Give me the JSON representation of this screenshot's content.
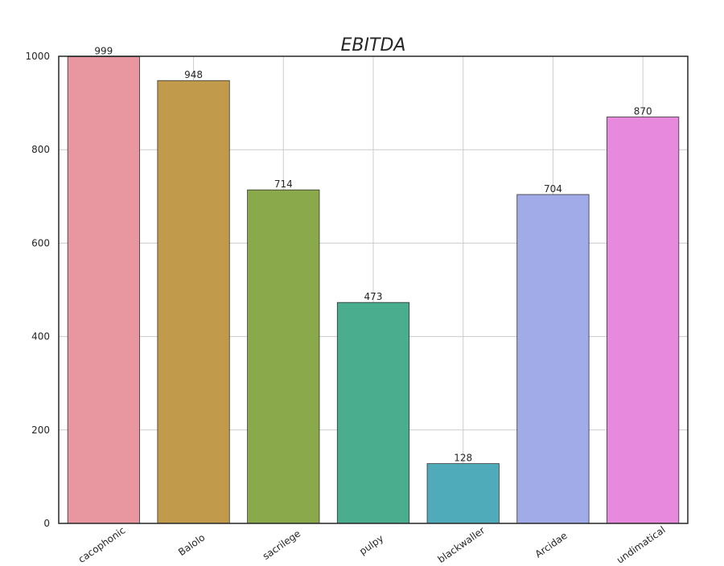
{
  "chart_data": {
    "type": "bar",
    "title": "EBITDA",
    "xlabel": "",
    "ylabel": "",
    "categories": [
      "cacophonic",
      "Balolo",
      "sacrilege",
      "pulpy",
      "blackwaller",
      "Arcidae",
      "undimatical"
    ],
    "values": [
      999,
      948,
      714,
      473,
      128,
      704,
      870
    ],
    "colors": [
      "#e8969f",
      "#c19a4c",
      "#8aa94a",
      "#4aad8e",
      "#4fabba",
      "#a0abe8",
      "#e78ade"
    ],
    "ylim": [
      0,
      1000
    ],
    "yticks": [
      0,
      200,
      400,
      600,
      800,
      1000
    ],
    "grid": true,
    "legend": "none"
  }
}
